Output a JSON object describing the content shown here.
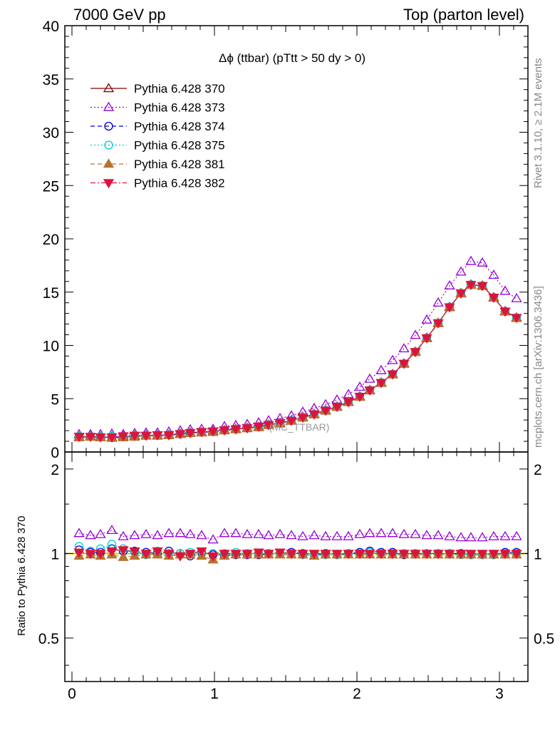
{
  "header": {
    "left": "7000 GeV pp",
    "right": "Top (parton level)"
  },
  "side_labels": {
    "rivet": "Rivet 3.1.10, ≥ 2.1M events",
    "mcplots": "mcplots.cern.ch [arXiv:1306.3436]"
  },
  "chart_data": [
    {
      "type": "line",
      "panel": "main",
      "title": "Δϕ (ttbar) (pTtt > 50 dy > 0)",
      "watermark": "(MC_TTBAR)",
      "xlabel": "",
      "ylabel": "",
      "xlim": [
        -0.05,
        3.2
      ],
      "ylim": [
        0,
        40
      ],
      "x_ticks": [
        0,
        1,
        2,
        3
      ],
      "y_ticks": [
        0,
        5,
        10,
        15,
        20,
        25,
        30,
        35,
        40
      ],
      "legend_position": "top-left",
      "x": [
        0.05,
        0.13,
        0.2,
        0.28,
        0.36,
        0.44,
        0.52,
        0.6,
        0.68,
        0.76,
        0.83,
        0.91,
        0.99,
        1.07,
        1.15,
        1.23,
        1.31,
        1.38,
        1.46,
        1.54,
        1.62,
        1.7,
        1.78,
        1.86,
        1.94,
        2.02,
        2.09,
        2.17,
        2.25,
        2.33,
        2.41,
        2.49,
        2.57,
        2.65,
        2.73,
        2.8,
        2.88,
        2.96,
        3.04,
        3.12
      ],
      "series": [
        {
          "name": "Pythia 6.428 370",
          "color": "#8b0000",
          "marker": "triangle-open",
          "dash": "solid",
          "values": [
            1.4,
            1.45,
            1.4,
            1.35,
            1.45,
            1.5,
            1.55,
            1.55,
            1.6,
            1.7,
            1.8,
            1.85,
            1.95,
            2.05,
            2.15,
            2.25,
            2.35,
            2.55,
            2.7,
            2.95,
            3.25,
            3.55,
            3.9,
            4.25,
            4.7,
            5.2,
            5.8,
            6.5,
            7.3,
            8.3,
            9.4,
            10.7,
            12.1,
            13.6,
            14.9,
            15.7,
            15.6,
            14.5,
            13.2,
            12.6
          ]
        },
        {
          "name": "Pythia 6.428 373",
          "color": "#9400d3",
          "marker": "triangle-open",
          "dash": "dotted",
          "values": [
            1.65,
            1.65,
            1.65,
            1.7,
            1.65,
            1.75,
            1.8,
            1.8,
            1.9,
            2.0,
            2.1,
            2.15,
            2.15,
            2.4,
            2.5,
            2.6,
            2.75,
            2.95,
            3.15,
            3.4,
            3.75,
            4.1,
            4.45,
            4.9,
            5.4,
            6.1,
            6.85,
            7.65,
            8.6,
            9.7,
            10.95,
            12.4,
            14.0,
            15.6,
            16.9,
            17.9,
            17.75,
            16.6,
            15.1,
            14.4
          ]
        },
        {
          "name": "Pythia 6.428 374",
          "color": "#0000cd",
          "marker": "circle-open",
          "dash": "dashed",
          "values": [
            1.4,
            1.45,
            1.4,
            1.35,
            1.45,
            1.5,
            1.55,
            1.55,
            1.6,
            1.7,
            1.8,
            1.85,
            1.95,
            2.05,
            2.15,
            2.25,
            2.35,
            2.55,
            2.7,
            2.95,
            3.25,
            3.55,
            3.9,
            4.25,
            4.7,
            5.2,
            5.8,
            6.5,
            7.3,
            8.3,
            9.4,
            10.7,
            12.1,
            13.6,
            14.9,
            15.7,
            15.6,
            14.5,
            13.2,
            12.6
          ]
        },
        {
          "name": "Pythia 6.428 375",
          "color": "#00ced1",
          "marker": "circle-open",
          "dash": "dotted",
          "values": [
            1.5,
            1.45,
            1.45,
            1.5,
            1.45,
            1.5,
            1.55,
            1.55,
            1.6,
            1.7,
            1.8,
            1.85,
            1.95,
            2.05,
            2.15,
            2.25,
            2.35,
            2.55,
            2.7,
            2.95,
            3.25,
            3.55,
            3.9,
            4.25,
            4.7,
            5.2,
            5.8,
            6.5,
            7.3,
            8.3,
            9.4,
            10.7,
            12.1,
            13.6,
            14.9,
            15.7,
            15.6,
            14.5,
            13.2,
            12.6
          ]
        },
        {
          "name": "Pythia 6.428 381",
          "color": "#b87333",
          "marker": "triangle-filled",
          "dash": "dashed",
          "values": [
            1.35,
            1.4,
            1.35,
            1.3,
            1.35,
            1.4,
            1.5,
            1.5,
            1.55,
            1.65,
            1.75,
            1.8,
            1.85,
            2.0,
            2.1,
            2.2,
            2.3,
            2.5,
            2.65,
            2.9,
            3.2,
            3.5,
            3.85,
            4.2,
            4.65,
            5.15,
            5.75,
            6.45,
            7.25,
            8.25,
            9.35,
            10.65,
            12.05,
            13.55,
            14.85,
            15.65,
            15.55,
            14.45,
            13.15,
            12.55
          ]
        },
        {
          "name": "Pythia 6.428 382",
          "color": "#dc143c",
          "marker": "triangle-down-filled",
          "dash": "dashdot",
          "values": [
            1.45,
            1.45,
            1.4,
            1.4,
            1.5,
            1.55,
            1.55,
            1.6,
            1.6,
            1.7,
            1.8,
            1.9,
            1.95,
            2.05,
            2.15,
            2.25,
            2.4,
            2.55,
            2.75,
            2.95,
            3.25,
            3.55,
            3.9,
            4.25,
            4.7,
            5.2,
            5.8,
            6.5,
            7.3,
            8.3,
            9.4,
            10.7,
            12.1,
            13.6,
            14.9,
            15.7,
            15.6,
            14.5,
            13.2,
            12.6
          ]
        }
      ]
    },
    {
      "type": "line",
      "panel": "ratio",
      "ylabel": "Ratio to Pythia 6.428 370",
      "xlim": [
        -0.05,
        3.2
      ],
      "ylim": [
        0.35,
        2.3
      ],
      "x_ticks": [
        0,
        1,
        2,
        3
      ],
      "y_ticks": [
        0.5,
        1,
        2
      ],
      "x": [
        0.05,
        0.13,
        0.2,
        0.28,
        0.36,
        0.44,
        0.52,
        0.6,
        0.68,
        0.76,
        0.83,
        0.91,
        0.99,
        1.07,
        1.15,
        1.23,
        1.31,
        1.38,
        1.46,
        1.54,
        1.62,
        1.7,
        1.78,
        1.86,
        1.94,
        2.02,
        2.09,
        2.17,
        2.25,
        2.33,
        2.41,
        2.49,
        2.57,
        2.65,
        2.73,
        2.8,
        2.88,
        2.96,
        3.04,
        3.12
      ],
      "series": [
        {
          "name": "Pythia 6.428 373",
          "values": [
            1.18,
            1.16,
            1.17,
            1.21,
            1.15,
            1.16,
            1.17,
            1.16,
            1.18,
            1.18,
            1.17,
            1.16,
            1.12,
            1.18,
            1.18,
            1.17,
            1.17,
            1.16,
            1.17,
            1.16,
            1.15,
            1.16,
            1.15,
            1.15,
            1.15,
            1.17,
            1.18,
            1.18,
            1.18,
            1.17,
            1.17,
            1.16,
            1.16,
            1.15,
            1.14,
            1.14,
            1.14,
            1.15,
            1.15,
            1.15
          ]
        },
        {
          "name": "Pythia 6.428 374",
          "values": [
            1.03,
            1.01,
            1.01,
            1.04,
            1.02,
            1.02,
            1.01,
            1.0,
            1.02,
            1.0,
            0.98,
            1.01,
            0.99,
            0.99,
            0.99,
            0.99,
            0.99,
            1.0,
            1.0,
            1.01,
            1.0,
            0.99,
            1.0,
            0.99,
            1.0,
            1.01,
            1.02,
            1.01,
            1.01,
            0.99,
            1.0,
            1.0,
            1.0,
            1.0,
            1.0,
            0.99,
            0.99,
            0.99,
            1.01,
            1.01
          ]
        },
        {
          "name": "Pythia 6.428 375",
          "values": [
            1.06,
            1.02,
            1.04,
            1.08,
            1.04,
            1.01,
            0.99,
            1.02,
            1.0,
            1.0,
            1.01,
            1.0,
            1.0,
            1.0,
            1.01,
            1.0,
            1.0,
            1.0,
            1.0,
            1.0,
            0.99,
            0.99,
            0.99,
            0.99,
            1.0,
            1.0,
            1.01,
            1.0,
            1.0,
            1.0,
            1.0,
            1.0,
            1.0,
            1.0,
            0.99,
            0.99,
            0.99,
            0.99,
            1.0,
            1.0
          ]
        },
        {
          "name": "Pythia 6.428 381",
          "values": [
            0.98,
            0.99,
            0.98,
            0.99,
            0.97,
            0.98,
            0.99,
            0.99,
            0.98,
            0.99,
            0.99,
            0.98,
            0.95,
            0.98,
            0.99,
            0.99,
            0.99,
            0.99,
            0.99,
            0.99,
            0.99,
            0.98,
            0.99,
            0.99,
            0.99,
            0.99,
            0.99,
            0.99,
            0.99,
            0.99,
            0.99,
            0.99,
            0.99,
            0.99,
            0.99,
            0.99,
            0.99,
            0.99,
            0.99,
            0.99
          ]
        },
        {
          "name": "Pythia 6.428 382",
          "values": [
            1.01,
            1.0,
            1.0,
            1.02,
            1.03,
            1.02,
            1.0,
            1.02,
            1.0,
            0.98,
            1.0,
            1.02,
            0.98,
            1.0,
            1.0,
            1.0,
            1.01,
            1.0,
            1.01,
            1.0,
            1.0,
            1.0,
            1.0,
            1.0,
            1.0,
            1.0,
            1.0,
            1.0,
            1.0,
            1.0,
            1.0,
            1.0,
            1.0,
            1.0,
            1.0,
            1.0,
            1.0,
            1.0,
            1.0,
            1.0
          ]
        }
      ]
    }
  ]
}
